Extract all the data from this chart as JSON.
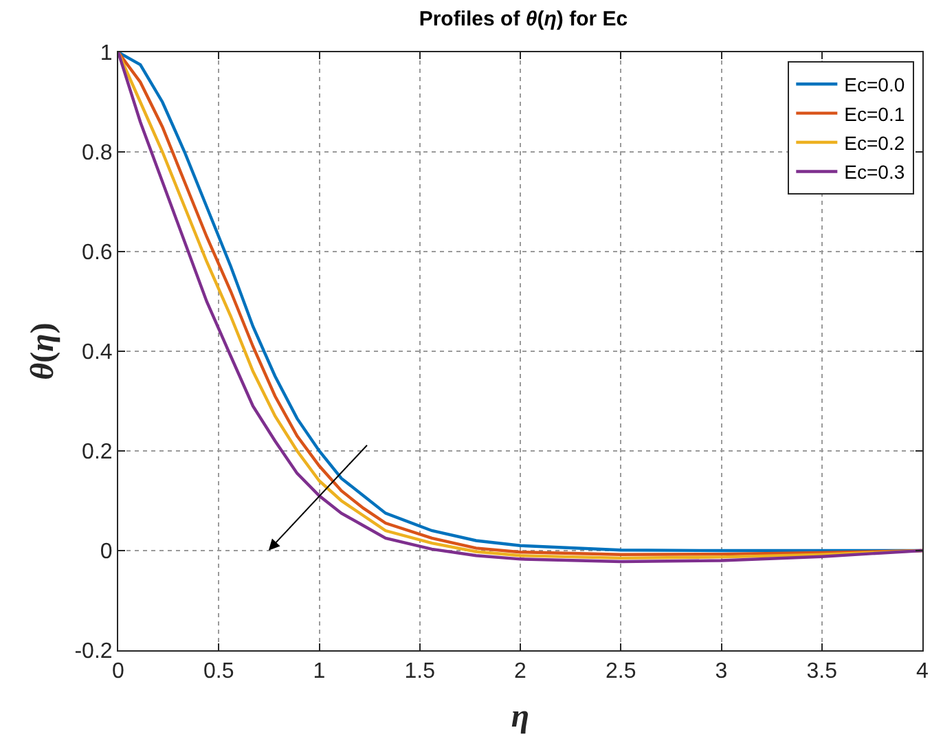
{
  "chart_data": {
    "type": "line",
    "title": "Profiles of θ(η) for Ec",
    "xlabel": "η",
    "ylabel": "θ(η)",
    "x": [
      0,
      0.11,
      0.22,
      0.33,
      0.44,
      0.56,
      0.67,
      0.78,
      0.89,
      1.0,
      1.11,
      1.22,
      1.33,
      1.56,
      1.78,
      2.0,
      2.5,
      3.0,
      3.5,
      4.0
    ],
    "series": [
      {
        "name": "Ec=0.0",
        "color": "#0072bd",
        "values": [
          1,
          0.975,
          0.9,
          0.8,
          0.69,
          0.57,
          0.45,
          0.35,
          0.265,
          0.2,
          0.145,
          0.11,
          0.075,
          0.04,
          0.02,
          0.01,
          0.001,
          0,
          0,
          0
        ]
      },
      {
        "name": "Ec=0.1",
        "color": "#d95319",
        "values": [
          1,
          0.94,
          0.85,
          0.74,
          0.63,
          0.52,
          0.41,
          0.31,
          0.23,
          0.17,
          0.12,
          0.085,
          0.055,
          0.025,
          0.005,
          -0.003,
          -0.008,
          -0.007,
          -0.004,
          0
        ]
      },
      {
        "name": "Ec=0.2",
        "color": "#edb120",
        "values": [
          1,
          0.9,
          0.8,
          0.69,
          0.58,
          0.47,
          0.36,
          0.27,
          0.2,
          0.14,
          0.1,
          0.07,
          0.04,
          0.015,
          -0.002,
          -0.01,
          -0.015,
          -0.013,
          -0.008,
          0
        ]
      },
      {
        "name": "Ec=0.3",
        "color": "#7e2f8e",
        "values": [
          1,
          0.86,
          0.74,
          0.62,
          0.5,
          0.39,
          0.29,
          0.22,
          0.155,
          0.11,
          0.075,
          0.05,
          0.025,
          0.003,
          -0.01,
          -0.017,
          -0.022,
          -0.02,
          -0.012,
          0
        ]
      }
    ],
    "xlim": [
      0,
      4
    ],
    "ylim": [
      -0.2,
      1
    ],
    "xticks": [
      0,
      0.5,
      1,
      1.5,
      2,
      2.5,
      3,
      3.5,
      4
    ],
    "yticks": [
      -0.2,
      0,
      0.2,
      0.4,
      0.6,
      0.8,
      1
    ],
    "grid": true,
    "legend": "top right",
    "marker": "none",
    "line_style": "solid"
  }
}
